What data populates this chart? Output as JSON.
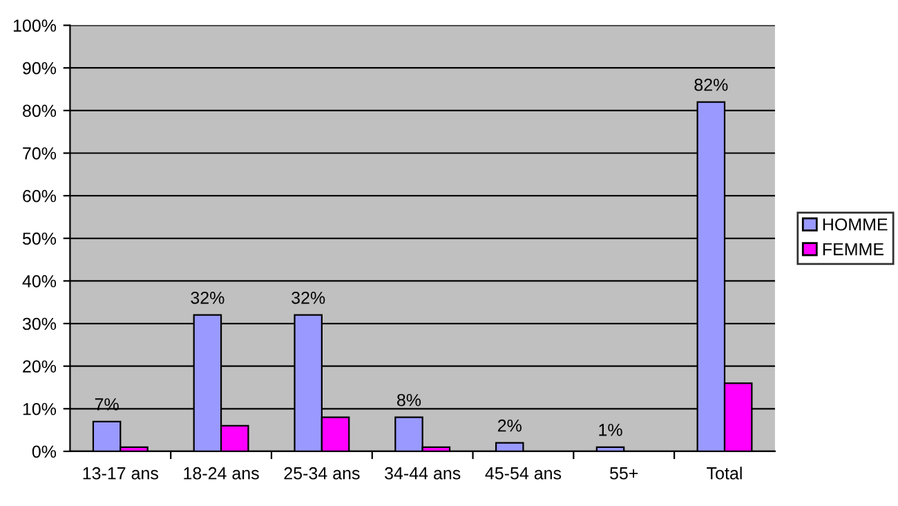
{
  "chart_data": {
    "type": "bar",
    "categories": [
      "13-17 ans",
      "18-24 ans",
      "25-34 ans",
      "34-44 ans",
      "45-54 ans",
      "55+",
      "Total"
    ],
    "series": [
      {
        "name": "HOMME",
        "color": "#9999ff",
        "values": [
          7,
          32,
          32,
          8,
          2,
          1,
          82
        ],
        "value_labels": [
          "7%",
          "32%",
          "32%",
          "8%",
          "2%",
          "1%",
          "82%"
        ]
      },
      {
        "name": "FEMME",
        "color": "#ff00ff",
        "values": [
          1,
          6,
          8,
          1,
          null,
          null,
          16
        ]
      }
    ],
    "ylim": [
      0,
      100
    ],
    "yticks": [
      {
        "value": 0,
        "label": "0%"
      },
      {
        "value": 10,
        "label": "10%"
      },
      {
        "value": 20,
        "label": "20%"
      },
      {
        "value": 30,
        "label": "30%"
      },
      {
        "value": 40,
        "label": "40%"
      },
      {
        "value": 50,
        "label": "50%"
      },
      {
        "value": 60,
        "label": "60%"
      },
      {
        "value": 70,
        "label": "70%"
      },
      {
        "value": 80,
        "label": "80%"
      },
      {
        "value": 90,
        "label": "90%"
      },
      {
        "value": 100,
        "label": "100%"
      }
    ],
    "grid": "y",
    "legend": "right"
  }
}
